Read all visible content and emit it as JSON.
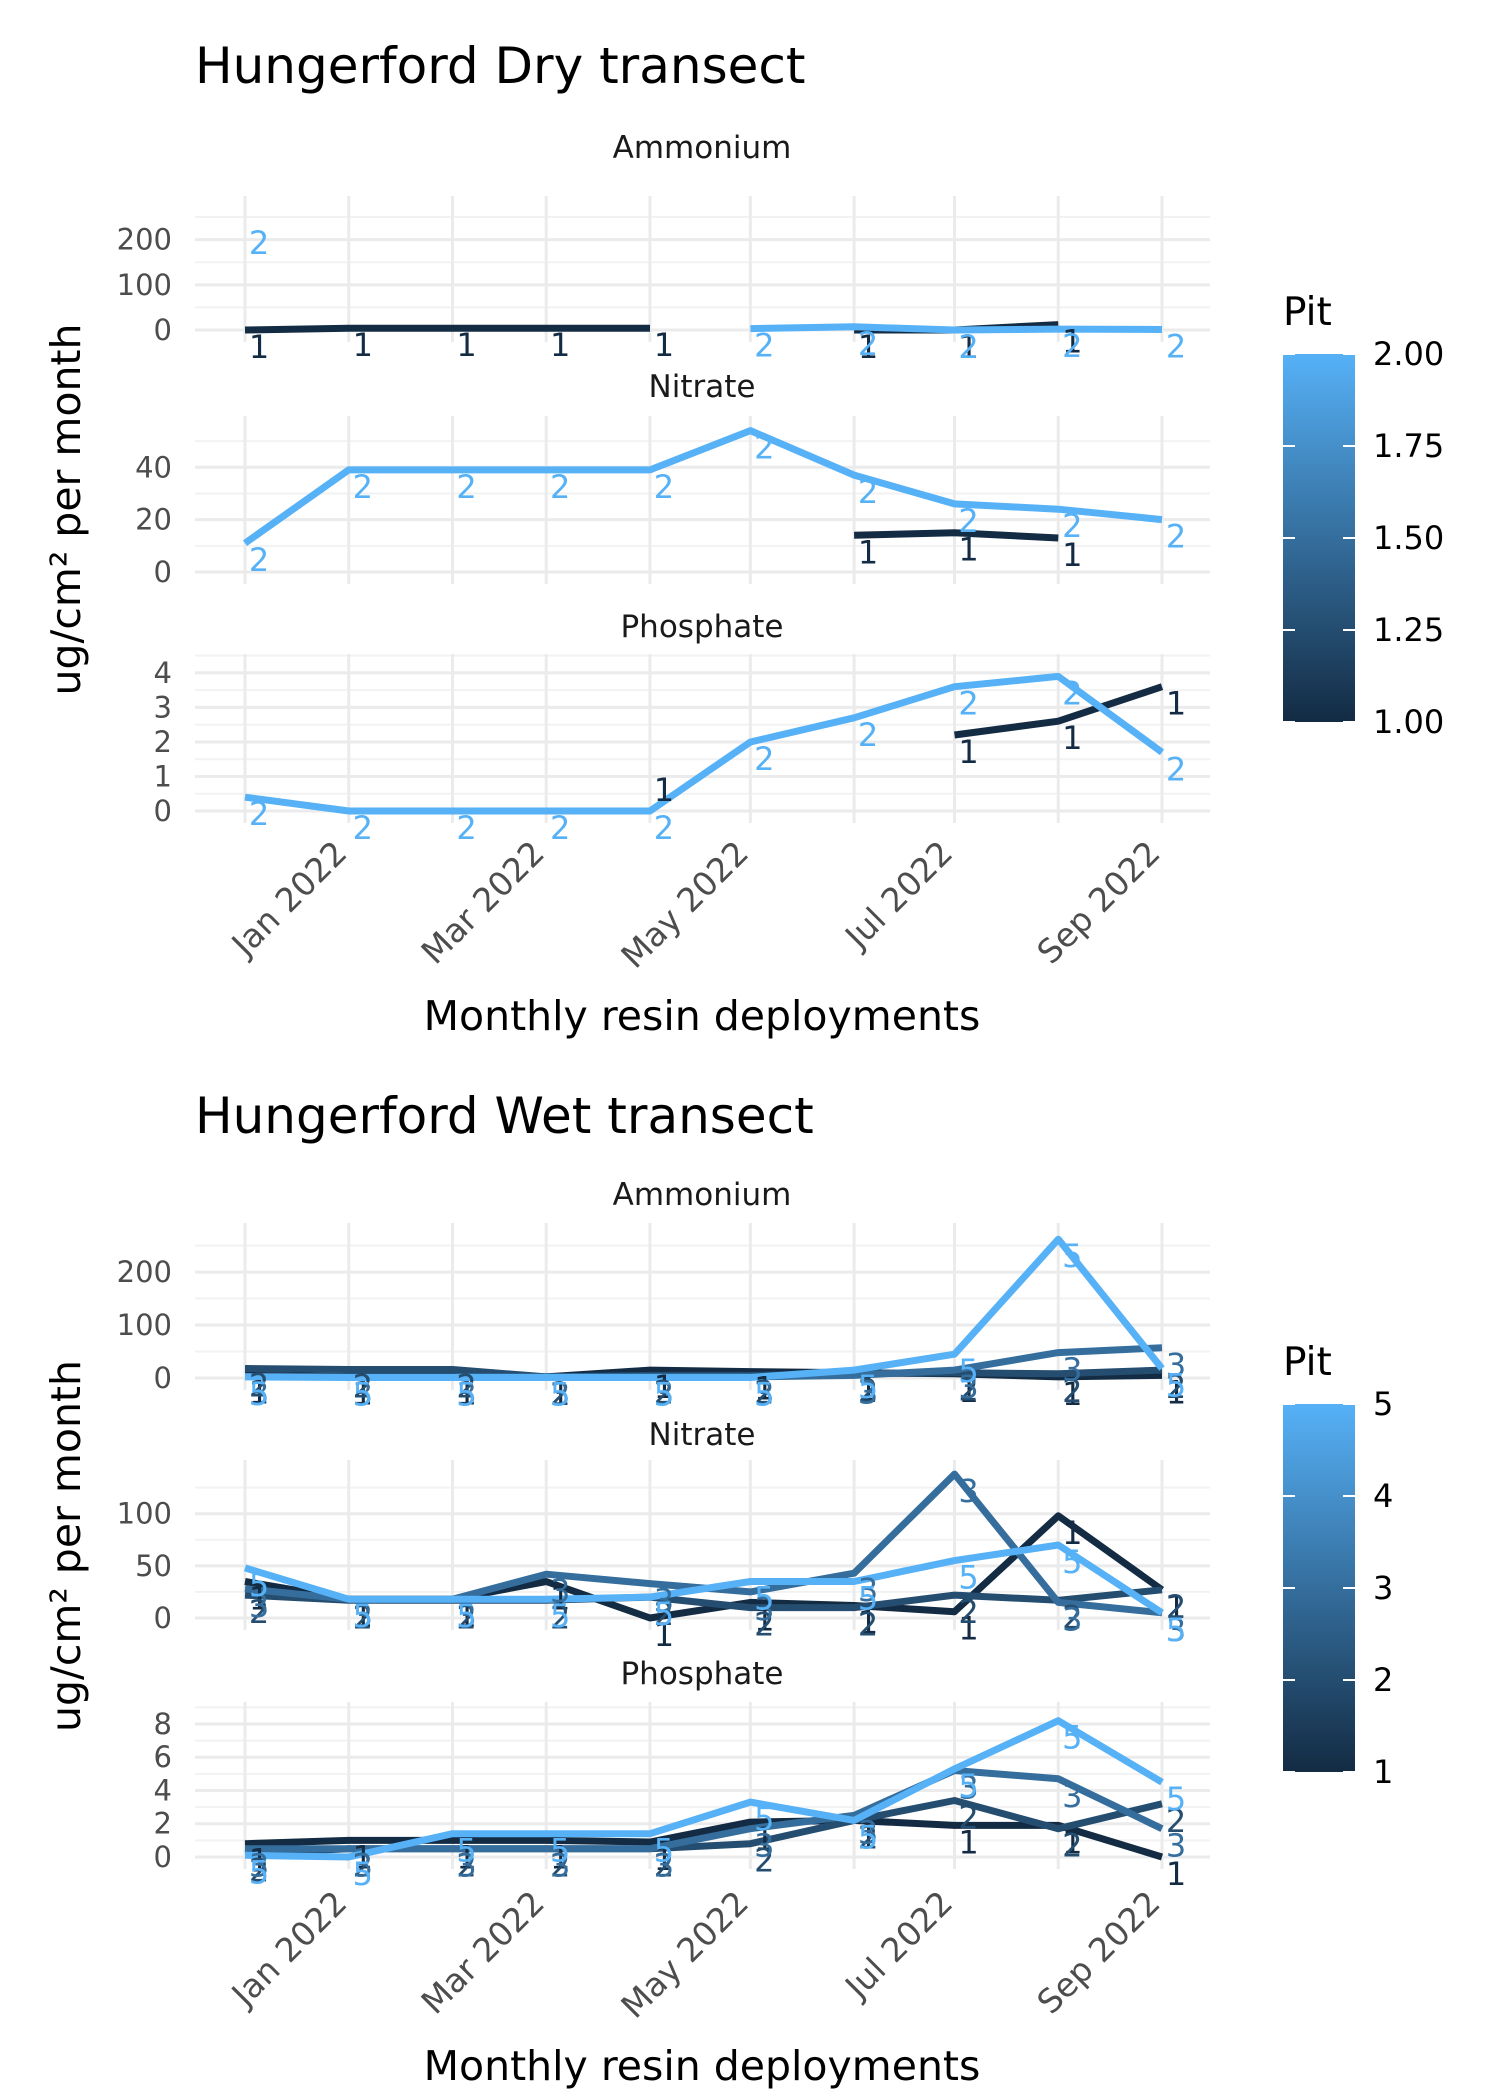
{
  "chart_data": [
    {
      "type": "line",
      "title": "Hungerford Dry transect",
      "xlabel": "Monthly resin deployments",
      "ylabel": "ug/cm² per month",
      "x_ticks": [
        "Jan 2022",
        "Mar 2022",
        "May 2022",
        "Jul 2022",
        "Sep 2022"
      ],
      "x_dates": [
        "2021-12-15",
        "2022-01-15",
        "2022-02-15",
        "2022-03-15",
        "2022-04-15",
        "2022-05-15",
        "2022-06-15",
        "2022-07-15",
        "2022-08-15",
        "2022-09-15"
      ],
      "legend": {
        "title": "Pit",
        "labels": [
          "2.00",
          "1.75",
          "1.50",
          "1.25",
          "1.00"
        ],
        "placement": "right",
        "low_color": "#132B43",
        "high_color": "#56B1F7"
      },
      "grid": true,
      "panels": [
        {
          "name": "Ammonium",
          "ylim": [
            0,
            270
          ],
          "y_ticks": [
            "200",
            "100",
            "0"
          ],
          "series": [
            {
              "name": "1",
              "values": [
                0,
                4,
                4,
                4,
                4,
                null,
                0,
                0,
                12,
                null
              ]
            },
            {
              "name": "2",
              "values": [
                230,
                null,
                null,
                null,
                null,
                3,
                7,
                0,
                2,
                1
              ]
            }
          ]
        },
        {
          "name": "Nitrate",
          "ylim": [
            0,
            55
          ],
          "y_ticks": [
            "40",
            "20",
            "0"
          ],
          "series": [
            {
              "name": "1",
              "values": [
                null,
                null,
                null,
                null,
                null,
                null,
                14,
                15,
                13,
                null
              ]
            },
            {
              "name": "2",
              "values": [
                11,
                39,
                39,
                39,
                39,
                54,
                37,
                26,
                24,
                20
              ]
            }
          ]
        },
        {
          "name": "Phosphate",
          "ylim": [
            0,
            4.2
          ],
          "y_ticks": [
            "4",
            "3",
            "2",
            "1",
            "0"
          ],
          "series": [
            {
              "name": "1",
              "values": [
                null,
                null,
                null,
                null,
                1.1,
                null,
                null,
                2.2,
                2.6,
                3.6
              ]
            },
            {
              "name": "2",
              "values": [
                0.4,
                0,
                0,
                0,
                0,
                2,
                2.7,
                3.6,
                3.9,
                1.7
              ]
            }
          ]
        }
      ]
    },
    {
      "type": "line",
      "title": "Hungerford Wet transect",
      "xlabel": "Monthly resin deployments",
      "ylabel": "ug/cm² per month",
      "x_ticks": [
        "Jan 2022",
        "Mar 2022",
        "May 2022",
        "Jul 2022",
        "Sep 2022"
      ],
      "x_dates": [
        "2021-12-15",
        "2022-01-15",
        "2022-02-15",
        "2022-03-15",
        "2022-04-15",
        "2022-05-15",
        "2022-06-15",
        "2022-07-15",
        "2022-08-15",
        "2022-09-15"
      ],
      "legend": {
        "title": "Pit",
        "labels": [
          "5",
          "4",
          "3",
          "2",
          "1"
        ],
        "placement": "right",
        "low_color": "#132B43",
        "high_color": "#56B1F7"
      },
      "grid": true,
      "panels": [
        {
          "name": "Ammonium",
          "ylim": [
            0,
            270
          ],
          "y_ticks": [
            "200",
            "100",
            "0"
          ],
          "series": [
            {
              "name": "1",
              "values": [
                5,
                3,
                3,
                2,
                15,
                12,
                10,
                8,
                2,
                5
              ]
            },
            {
              "name": "2",
              "values": [
                18,
                16,
                16,
                2,
                5,
                5,
                8,
                10,
                8,
                15
              ]
            },
            {
              "name": "3",
              "values": [
                3,
                2,
                2,
                2,
                2,
                2,
                5,
                15,
                48,
                57
              ]
            },
            {
              "name": "5",
              "values": [
                2,
                1,
                1,
                1,
                1,
                1,
                15,
                45,
                262,
                18
              ]
            }
          ]
        },
        {
          "name": "Nitrate",
          "ylim": [
            0,
            140
          ],
          "y_ticks": [
            "100",
            "50",
            "0"
          ],
          "series": [
            {
              "name": "1",
              "values": [
                35,
                18,
                18,
                35,
                0,
                15,
                12,
                6,
                98,
                27
              ]
            },
            {
              "name": "2",
              "values": [
                22,
                17,
                17,
                17,
                20,
                10,
                10,
                22,
                17,
                27
              ]
            },
            {
              "name": "3",
              "values": [
                28,
                18,
                18,
                42,
                33,
                25,
                43,
                138,
                15,
                5
              ]
            },
            {
              "name": "5",
              "values": [
                48,
                18,
                18,
                18,
                20,
                35,
                35,
                55,
                70,
                5
              ]
            }
          ]
        },
        {
          "name": "Phosphate",
          "ylim": [
            0,
            8.6
          ],
          "y_ticks": [
            "8",
            "6",
            "4",
            "2",
            "0"
          ],
          "series": [
            {
              "name": "1",
              "values": [
                0.8,
                1,
                1,
                1,
                0.9,
                2.1,
                2.2,
                1.9,
                1.9,
                0
              ]
            },
            {
              "name": "2",
              "values": [
                0.2,
                0.5,
                0.5,
                0.5,
                0.5,
                0.8,
                2.2,
                3.4,
                1.7,
                3.2
              ]
            },
            {
              "name": "3",
              "values": [
                0.5,
                0.5,
                0.5,
                0.5,
                0.5,
                1.7,
                2.5,
                5.2,
                4.7,
                1.7
              ]
            },
            {
              "name": "5",
              "values": [
                0.1,
                0,
                1.4,
                1.4,
                1.4,
                3.3,
                2.2,
                5.3,
                8.2,
                4.5
              ]
            }
          ]
        }
      ]
    }
  ]
}
